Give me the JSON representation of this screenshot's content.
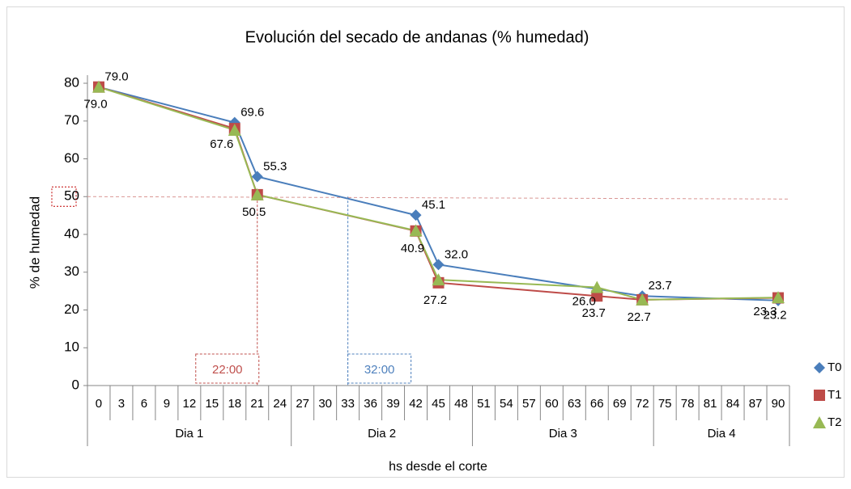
{
  "chart_data": {
    "type": "line",
    "title": "Evolución del secado de andanas (% humedad)",
    "x_label": "hs desde el corte",
    "y_label": "% de humedad",
    "xticks": [
      0,
      3,
      6,
      9,
      12,
      15,
      18,
      21,
      24,
      27,
      30,
      33,
      36,
      39,
      42,
      45,
      48,
      51,
      54,
      57,
      60,
      63,
      66,
      69,
      72,
      75,
      78,
      81,
      84,
      87,
      90
    ],
    "xlim": [
      -1.5,
      91.5
    ],
    "groups": [
      {
        "name": "Dia 1",
        "first": 0,
        "last": 24
      },
      {
        "name": "Dia 2",
        "first": 27,
        "last": 48
      },
      {
        "name": "Dia 3",
        "first": 51,
        "last": 72
      },
      {
        "name": "Dia 4",
        "first": 75,
        "last": 90
      }
    ],
    "ylim": [
      0,
      80
    ],
    "yticks": [
      0,
      10,
      20,
      30,
      40,
      50,
      60,
      70,
      80
    ],
    "ref_y": 50,
    "markers": [
      {
        "label": "22:00",
        "x": 21,
        "color": "#c0504d"
      },
      {
        "label": "32:00",
        "x": 33,
        "color": "#4f81bd"
      }
    ],
    "legend": "right",
    "series": [
      {
        "name": "T0",
        "color": "#4a7ebb",
        "marker": "diamond",
        "x": [
          0,
          18,
          21,
          42,
          45,
          72,
          90
        ],
        "values": [
          79.0,
          69.6,
          55.3,
          45.1,
          32.0,
          23.7,
          22.5
        ],
        "value_labels": [
          "79.0",
          "69.6",
          "55.3",
          "45.1",
          "32.0",
          "23.7",
          null
        ]
      },
      {
        "name": "T1",
        "color": "#be4b48",
        "marker": "square",
        "x": [
          0,
          18,
          21,
          42,
          45,
          66,
          72,
          90
        ],
        "values": [
          79.0,
          68.0,
          50.5,
          40.9,
          27.2,
          23.7,
          22.7,
          23.2
        ],
        "value_labels": [
          "79.0",
          null,
          "50.5",
          "40.9",
          "27.2",
          "23.7",
          "22.7",
          "23.2"
        ]
      },
      {
        "name": "T2",
        "color": "#98b954",
        "marker": "triangle",
        "x": [
          0,
          18,
          21,
          42,
          45,
          66,
          72,
          90
        ],
        "values": [
          79.0,
          67.6,
          50.5,
          41.0,
          28.0,
          26.0,
          22.7,
          23.3
        ],
        "value_labels": [
          null,
          "67.6",
          null,
          null,
          null,
          "26.0",
          null,
          "23.3"
        ]
      }
    ]
  }
}
